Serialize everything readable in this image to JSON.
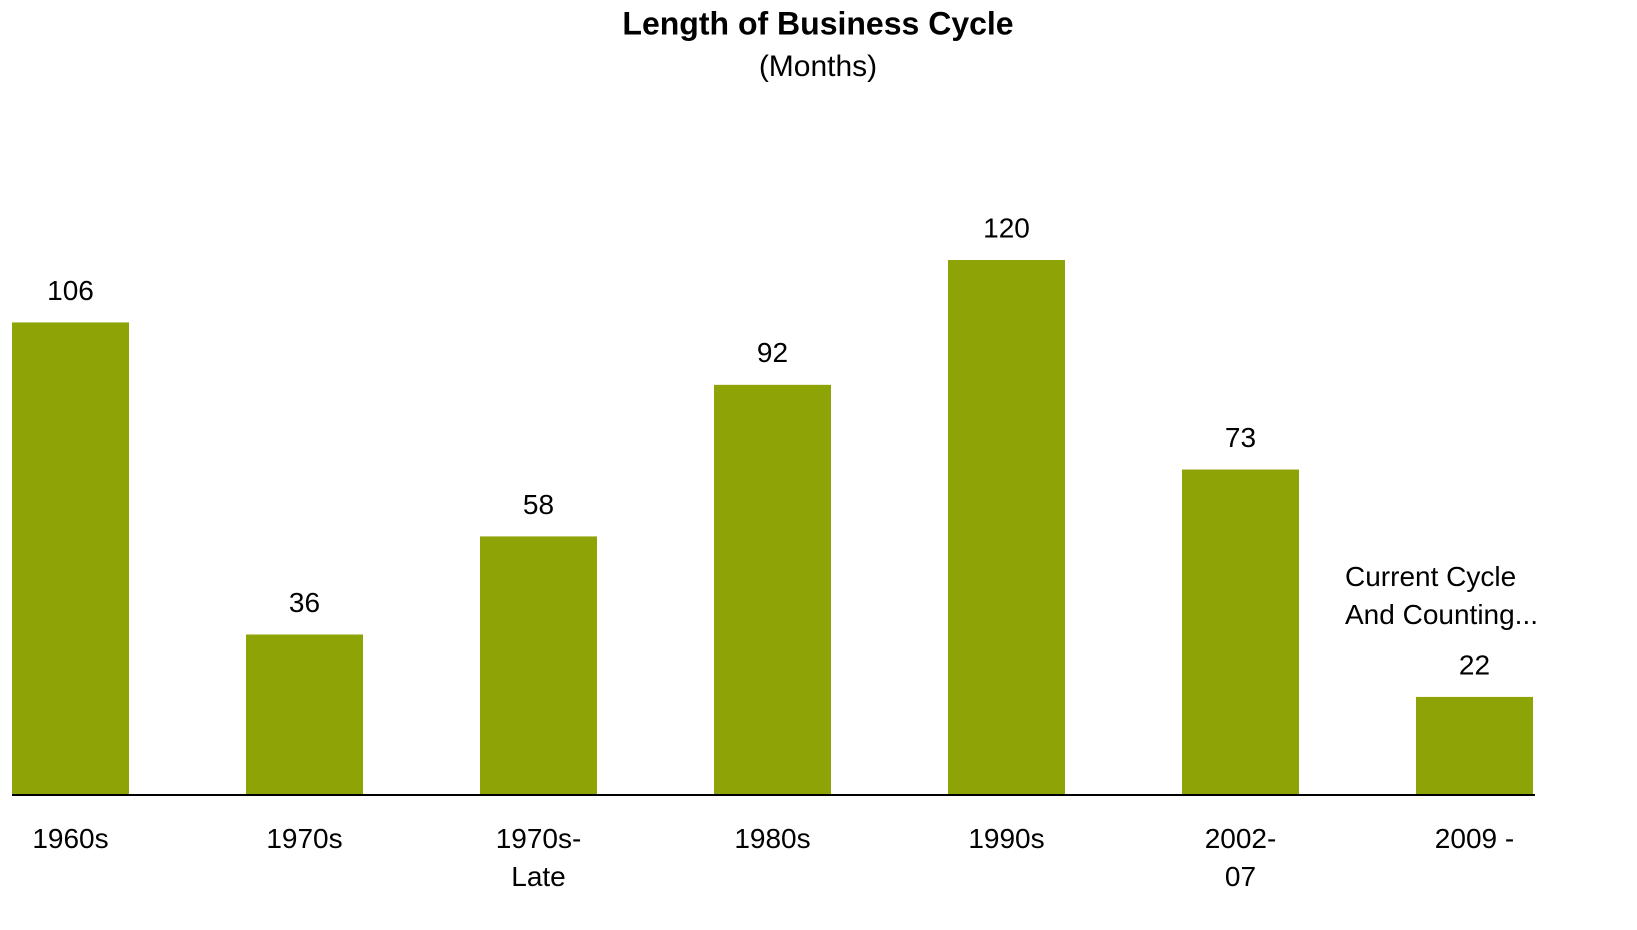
{
  "chart_data": {
    "type": "bar",
    "title": "Length of Business Cycle",
    "subtitle": "(Months)",
    "categories": [
      "1960s",
      "1970s",
      "1970s-\nLate",
      "1980s",
      "1990s",
      "2002-\n07",
      "2009 -"
    ],
    "values": [
      106,
      36,
      58,
      92,
      120,
      73,
      22
    ],
    "color": "#8ea306",
    "annotation": "Current Cycle\nAnd Counting..."
  }
}
